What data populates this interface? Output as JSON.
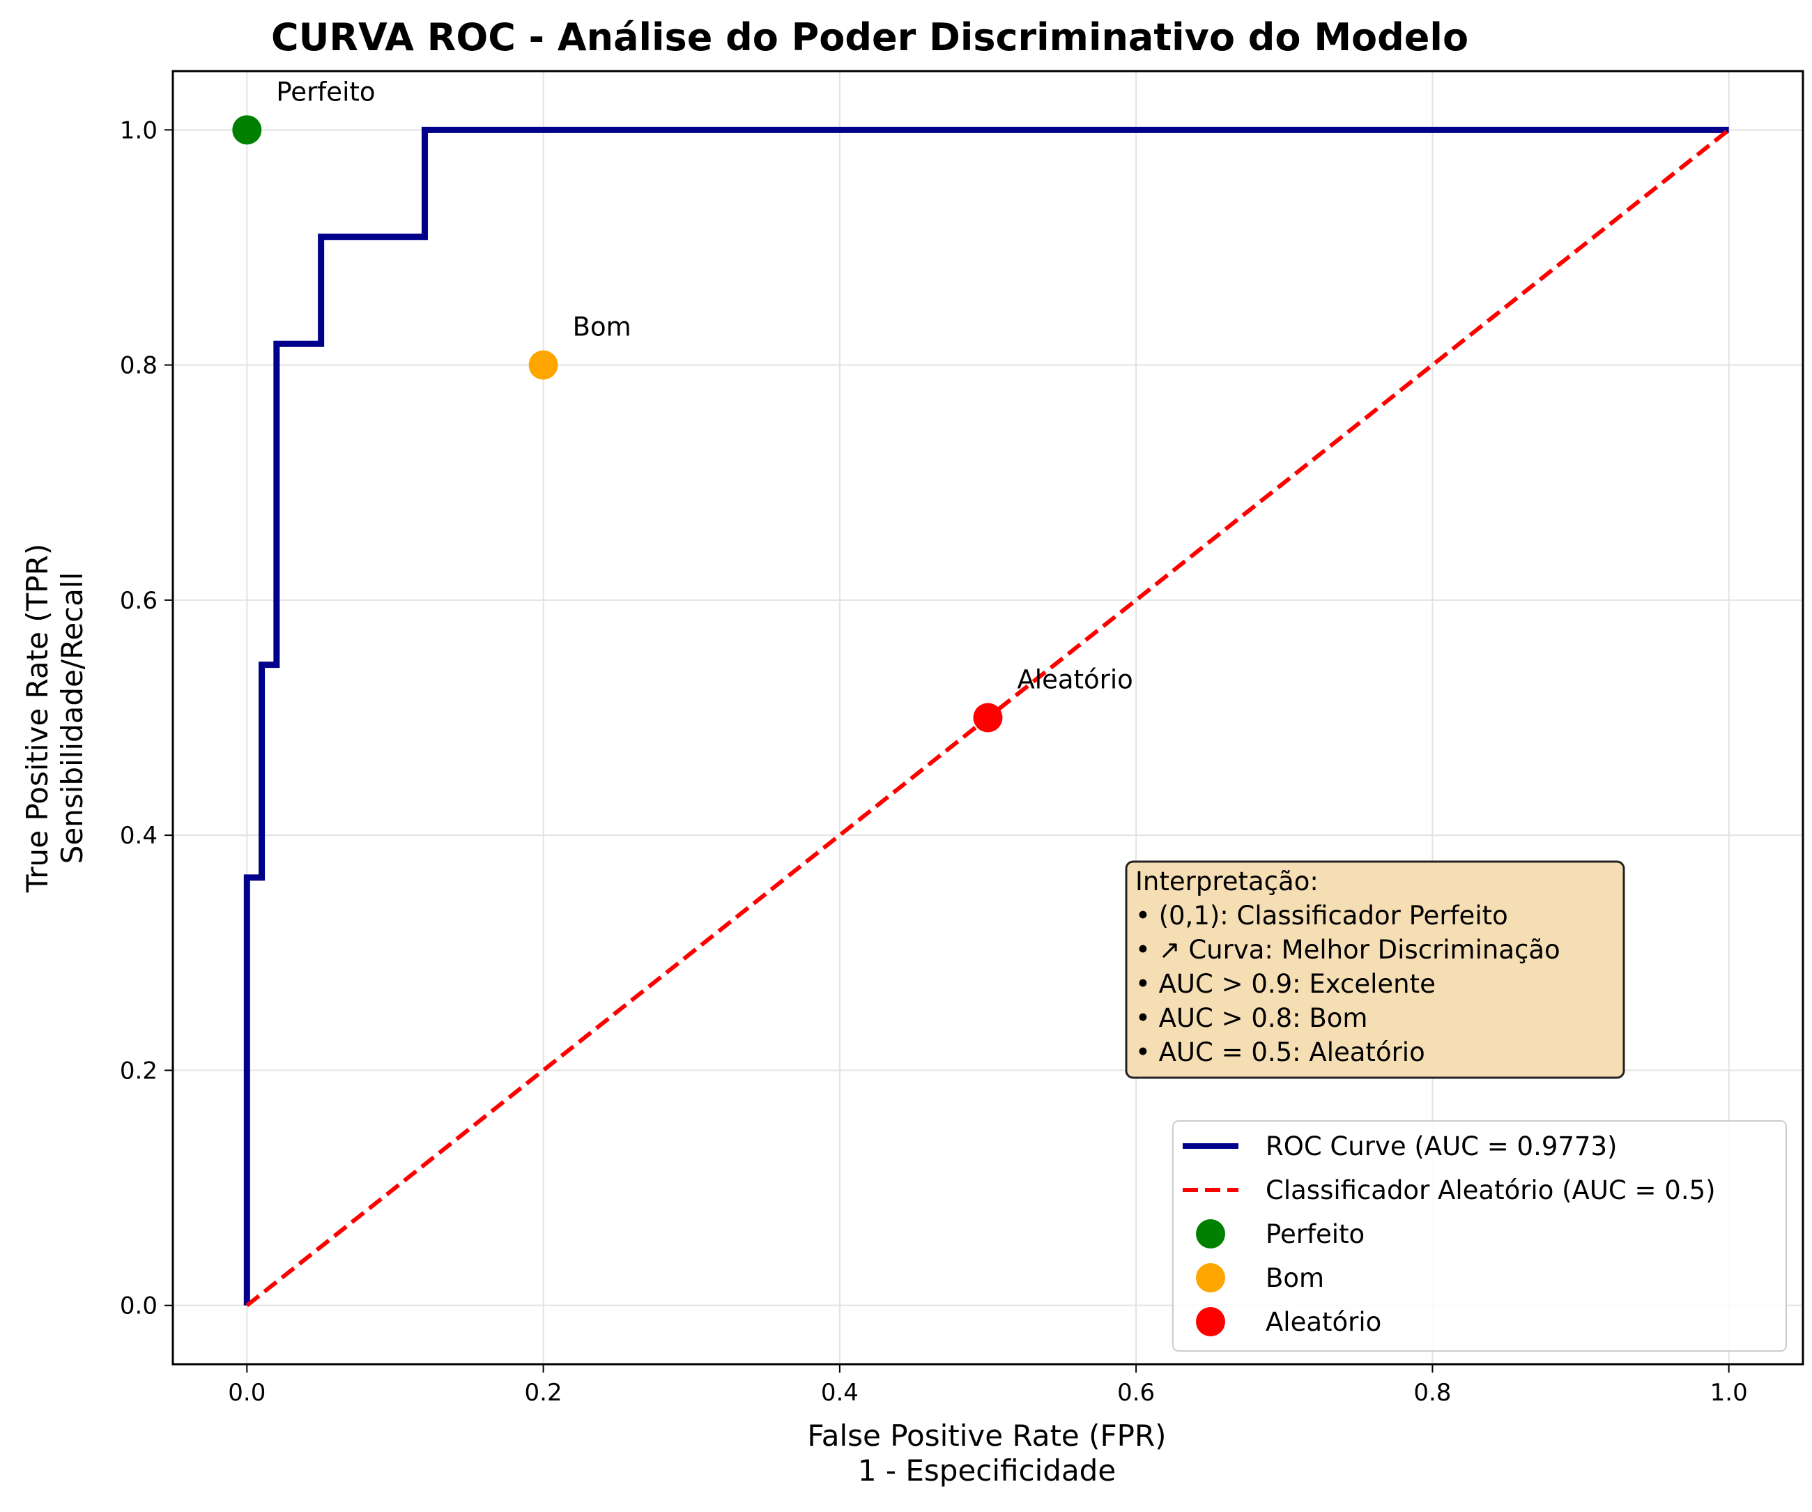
{
  "chart_data": {
    "type": "line",
    "title": "CURVA ROC - Análise do Poder Discriminativo do Modelo",
    "xlabel": "False Positive Rate (FPR)",
    "xlabel2": "1 - Especificidade",
    "ylabel": "True Positive Rate (TPR)",
    "ylabel2": "Sensibilidade/Recall",
    "xlim": [
      -0.05,
      1.05
    ],
    "ylim": [
      -0.05,
      1.05
    ],
    "xticks": [
      "0.0",
      "0.2",
      "0.4",
      "0.6",
      "0.8",
      "1.0"
    ],
    "yticks": [
      "0.0",
      "0.2",
      "0.4",
      "0.6",
      "0.8",
      "1.0"
    ],
    "grid": true,
    "series": [
      {
        "name": "ROC Curve (AUC = 0.9773)",
        "color": "#00008b",
        "style": "solid",
        "x": [
          0.0,
          0.0,
          0.01,
          0.01,
          0.02,
          0.02,
          0.05,
          0.05,
          0.12,
          0.12,
          1.0
        ],
        "y": [
          0.0,
          0.364,
          0.364,
          0.545,
          0.545,
          0.818,
          0.818,
          0.909,
          0.909,
          1.0,
          1.0
        ]
      },
      {
        "name": "Classificador Aleatório (AUC = 0.5)",
        "color": "#ff0000",
        "style": "dashed",
        "x": [
          0.0,
          1.0
        ],
        "y": [
          0.0,
          1.0
        ]
      }
    ],
    "points": [
      {
        "name": "Perfeito",
        "label": "Perfeito",
        "x": 0.0,
        "y": 1.0,
        "color": "#008000"
      },
      {
        "name": "Bom",
        "label": "Bom",
        "x": 0.2,
        "y": 0.8,
        "color": "#ffa500"
      },
      {
        "name": "Aleatório",
        "label": "Aleatório",
        "x": 0.5,
        "y": 0.5,
        "color": "#ff0000"
      }
    ],
    "legend_placement": "lower-right",
    "interpretation": {
      "title": "Interpretação:",
      "lines": [
        "• (0,1): Classificador Perfeito",
        "• ↗ Curva: Melhor Discriminação",
        "• AUC > 0.9: Excelente",
        "• AUC > 0.8: Bom",
        "• AUC = 0.5: Aleatório"
      ],
      "background": "#f5deb3"
    }
  }
}
